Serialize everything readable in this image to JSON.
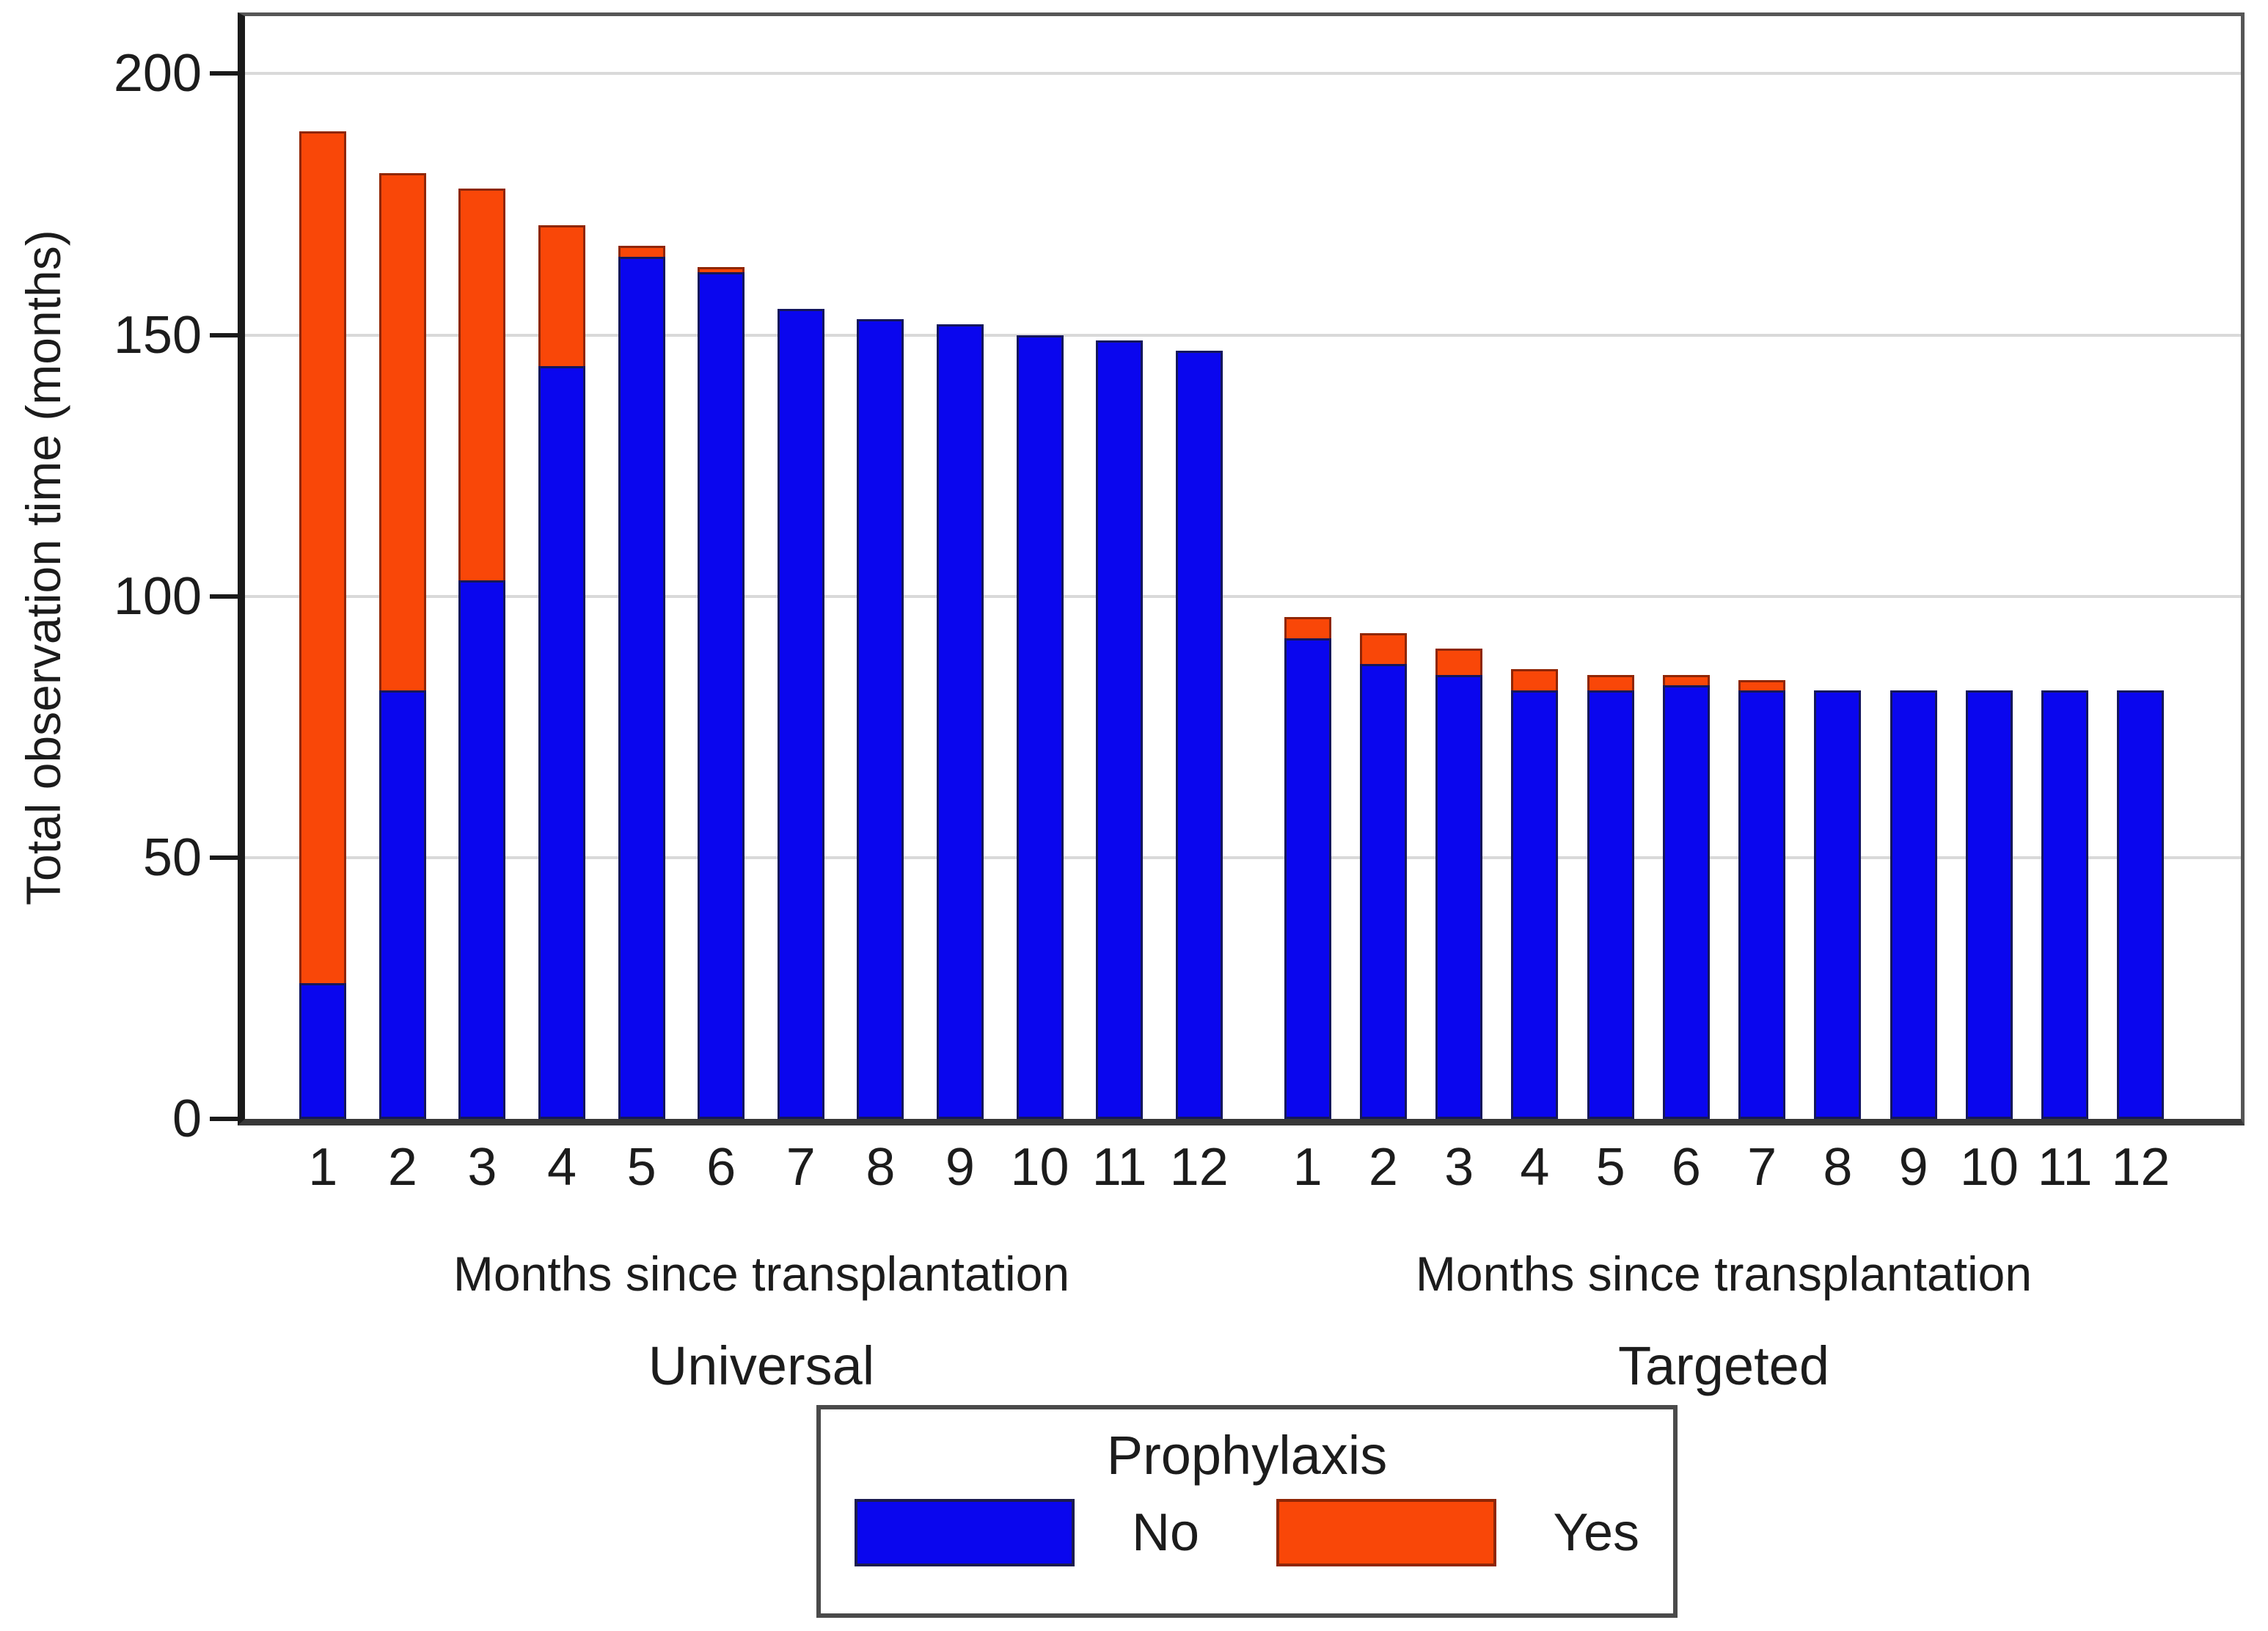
{
  "chart_data": {
    "type": "bar",
    "stacked": true,
    "title": "",
    "ylabel": "Total observation time (months)",
    "xlabel": "Months since transplantation",
    "ylim": [
      0,
      211
    ],
    "y_ticks": [
      0,
      50,
      100,
      150,
      200
    ],
    "grid": "horizontal",
    "categories": [
      "1",
      "2",
      "3",
      "4",
      "5",
      "6",
      "7",
      "8",
      "9",
      "10",
      "11",
      "12"
    ],
    "panels": [
      {
        "label": "Universal",
        "series": [
          {
            "name": "No",
            "values": [
              26,
              82,
              103,
              144,
              165,
              162,
              155,
              153,
              152,
              150,
              149,
              147
            ]
          },
          {
            "name": "Yes",
            "values": [
              163,
              99,
              75,
              27,
              2,
              1,
              0,
              0,
              0,
              0,
              0,
              0
            ]
          }
        ]
      },
      {
        "label": "Targeted",
        "series": [
          {
            "name": "No",
            "values": [
              92,
              87,
              85,
              82,
              82,
              83,
              82,
              82,
              82,
              82,
              82,
              82
            ]
          },
          {
            "name": "Yes",
            "values": [
              4,
              6,
              5,
              4,
              3,
              2,
              2,
              0,
              0,
              0,
              0,
              0
            ]
          }
        ]
      }
    ],
    "legend": {
      "title": "Prophylaxis",
      "position": "bottom",
      "items": [
        {
          "label": "No",
          "color": "#0a06ee"
        },
        {
          "label": "Yes",
          "color": "#f94708"
        }
      ]
    }
  },
  "colors": {
    "bar_no_fill": "#0a06ee",
    "bar_no_border": "#14175c",
    "bar_yes_fill": "#f94708",
    "bar_yes_border": "#8f2606",
    "gridline": "#d9d9d9",
    "axis": "#1a1a1a",
    "frame": "#565656",
    "text": "#1c1c1c",
    "background": "#ffffff"
  }
}
